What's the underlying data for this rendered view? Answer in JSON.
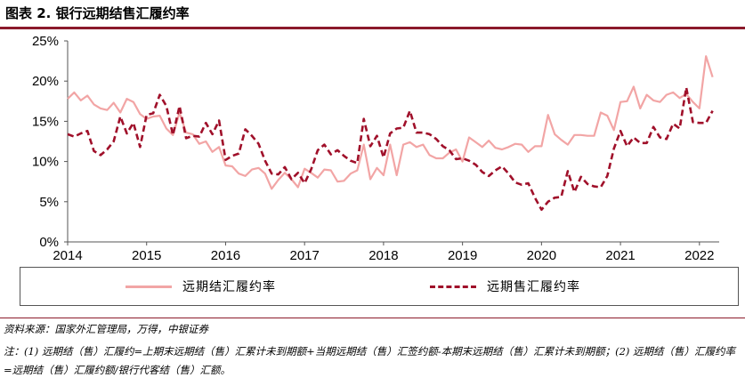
{
  "title": "图表 2. 银行远期结售汇履约率",
  "source": "资料来源：国家外汇管理局，万得，中银证券",
  "note": "注：(1) 远期结（售）汇履约=上期末远期结（售）汇累计未到期额+当期远期结（售）汇签约额-本期末远期结（售）汇累计未到期额；(2) 远期结（售）汇履约率=远期结（售）汇履约额/银行代客结（售）汇额。",
  "colors": {
    "settlement": "#f2a5a5",
    "sale": "#a0102a",
    "accent": "#8b1a2b"
  },
  "chart_data": {
    "type": "line",
    "title": "",
    "xlabel": "",
    "ylabel": "",
    "ylim": [
      0,
      25
    ],
    "xlim": [
      2014,
      2022.25
    ],
    "yticks": [
      "0%",
      "5%",
      "10%",
      "15%",
      "20%",
      "25%"
    ],
    "xticks": [
      "2014",
      "2015",
      "2016",
      "2017",
      "2018",
      "2019",
      "2020",
      "2021",
      "2022"
    ],
    "grid": false,
    "legend_position": "bottom",
    "series": [
      {
        "name": "远期结汇履约率",
        "style": "solid",
        "color": "#f2a5a5",
        "x": [
          2014.0,
          2014.083,
          2014.167,
          2014.25,
          2014.333,
          2014.417,
          2014.5,
          2014.583,
          2014.667,
          2014.75,
          2014.833,
          2014.917,
          2015.0,
          2015.083,
          2015.167,
          2015.25,
          2015.333,
          2015.417,
          2015.5,
          2015.583,
          2015.667,
          2015.75,
          2015.833,
          2015.917,
          2016.0,
          2016.083,
          2016.167,
          2016.25,
          2016.333,
          2016.417,
          2016.5,
          2016.583,
          2016.667,
          2016.75,
          2016.833,
          2016.917,
          2017.0,
          2017.083,
          2017.167,
          2017.25,
          2017.333,
          2017.417,
          2017.5,
          2017.583,
          2017.667,
          2017.75,
          2017.833,
          2017.917,
          2018.0,
          2018.083,
          2018.167,
          2018.25,
          2018.333,
          2018.417,
          2018.5,
          2018.583,
          2018.667,
          2018.75,
          2018.833,
          2018.917,
          2019.0,
          2019.083,
          2019.167,
          2019.25,
          2019.333,
          2019.417,
          2019.5,
          2019.583,
          2019.667,
          2019.75,
          2019.833,
          2019.917,
          2020.0,
          2020.083,
          2020.167,
          2020.25,
          2020.333,
          2020.417,
          2020.5,
          2020.583,
          2020.667,
          2020.75,
          2020.833,
          2020.917,
          2021.0,
          2021.083,
          2021.167,
          2021.25,
          2021.333,
          2021.417,
          2021.5,
          2021.583,
          2021.667,
          2021.75,
          2021.833,
          2021.917,
          2022.0,
          2022.083,
          2022.167
        ],
        "y": [
          17.8,
          18.6,
          17.6,
          18.2,
          17.1,
          16.6,
          16.4,
          17.3,
          16.1,
          17.8,
          17.4,
          15.9,
          15.3,
          15.6,
          15.7,
          14.1,
          13.3,
          16.1,
          13.6,
          13.4,
          12.2,
          12.5,
          11.2,
          11.8,
          9.5,
          9.4,
          8.5,
          8.2,
          9.0,
          9.2,
          8.5,
          6.6,
          7.7,
          8.6,
          7.8,
          6.8,
          9.1,
          8.6,
          8.0,
          9.0,
          8.9,
          7.5,
          7.6,
          8.5,
          8.9,
          12.1,
          7.8,
          9.2,
          8.3,
          12.1,
          8.3,
          12.1,
          12.4,
          11.8,
          12.1,
          10.8,
          10.4,
          10.4,
          11.1,
          11.5,
          10.0,
          13.0,
          12.4,
          11.8,
          12.6,
          11.7,
          11.5,
          11.8,
          12.2,
          12.1,
          11.2,
          11.9,
          11.9,
          15.8,
          13.4,
          12.7,
          12.1,
          13.3,
          13.3,
          13.2,
          13.2,
          16.1,
          15.7,
          13.9,
          17.4,
          17.5,
          19.3,
          16.6,
          18.3,
          17.6,
          17.4,
          18.3,
          18.6,
          17.9,
          18.4,
          17.4,
          16.6,
          23.1,
          20.5
        ]
      },
      {
        "name": "远期售汇履约率",
        "style": "dashed",
        "color": "#a0102a",
        "x": [
          2014.0,
          2014.083,
          2014.167,
          2014.25,
          2014.333,
          2014.417,
          2014.5,
          2014.583,
          2014.667,
          2014.75,
          2014.833,
          2014.917,
          2015.0,
          2015.083,
          2015.167,
          2015.25,
          2015.333,
          2015.417,
          2015.5,
          2015.583,
          2015.667,
          2015.75,
          2015.833,
          2015.917,
          2016.0,
          2016.083,
          2016.167,
          2016.25,
          2016.333,
          2016.417,
          2016.5,
          2016.583,
          2016.667,
          2016.75,
          2016.833,
          2016.917,
          2017.0,
          2017.083,
          2017.167,
          2017.25,
          2017.333,
          2017.417,
          2017.5,
          2017.583,
          2017.667,
          2017.75,
          2017.833,
          2017.917,
          2018.0,
          2018.083,
          2018.167,
          2018.25,
          2018.333,
          2018.417,
          2018.5,
          2018.583,
          2018.667,
          2018.75,
          2018.833,
          2018.917,
          2019.0,
          2019.083,
          2019.167,
          2019.25,
          2019.333,
          2019.417,
          2019.5,
          2019.583,
          2019.667,
          2019.75,
          2019.833,
          2019.917,
          2020.0,
          2020.083,
          2020.167,
          2020.25,
          2020.333,
          2020.417,
          2020.5,
          2020.583,
          2020.667,
          2020.75,
          2020.833,
          2020.917,
          2021.0,
          2021.083,
          2021.167,
          2021.25,
          2021.333,
          2021.417,
          2021.5,
          2021.583,
          2021.667,
          2021.75,
          2021.833,
          2021.917,
          2022.0,
          2022.083,
          2022.167
        ],
        "y": [
          13.4,
          13.1,
          13.5,
          13.8,
          11.3,
          10.8,
          11.5,
          12.5,
          15.6,
          13.5,
          14.8,
          11.8,
          15.8,
          16.0,
          18.3,
          16.9,
          13.3,
          16.9,
          12.9,
          13.2,
          13.1,
          14.8,
          13.4,
          15.1,
          10.2,
          10.7,
          11.0,
          14.0,
          13.2,
          12.2,
          10.1,
          8.5,
          8.4,
          9.3,
          7.8,
          8.6,
          7.3,
          9.0,
          11.4,
          12.1,
          10.9,
          11.4,
          10.7,
          10.1,
          9.8,
          15.3,
          11.9,
          13.2,
          10.5,
          13.5,
          14.1,
          14.2,
          16.3,
          13.6,
          13.6,
          13.4,
          12.8,
          11.9,
          11.4,
          10.3,
          10.4,
          10.1,
          9.6,
          8.7,
          8.2,
          8.9,
          9.4,
          8.5,
          7.4,
          7.1,
          7.3,
          5.5,
          4.0,
          5.0,
          5.5,
          5.6,
          8.8,
          6.2,
          8.1,
          7.2,
          6.9,
          6.8,
          8.2,
          11.6,
          13.8,
          11.9,
          13.0,
          12.3,
          12.3,
          14.3,
          13.0,
          12.8,
          14.7,
          14.1,
          19.2,
          14.9,
          14.8,
          14.8,
          16.3
        ]
      }
    ]
  }
}
